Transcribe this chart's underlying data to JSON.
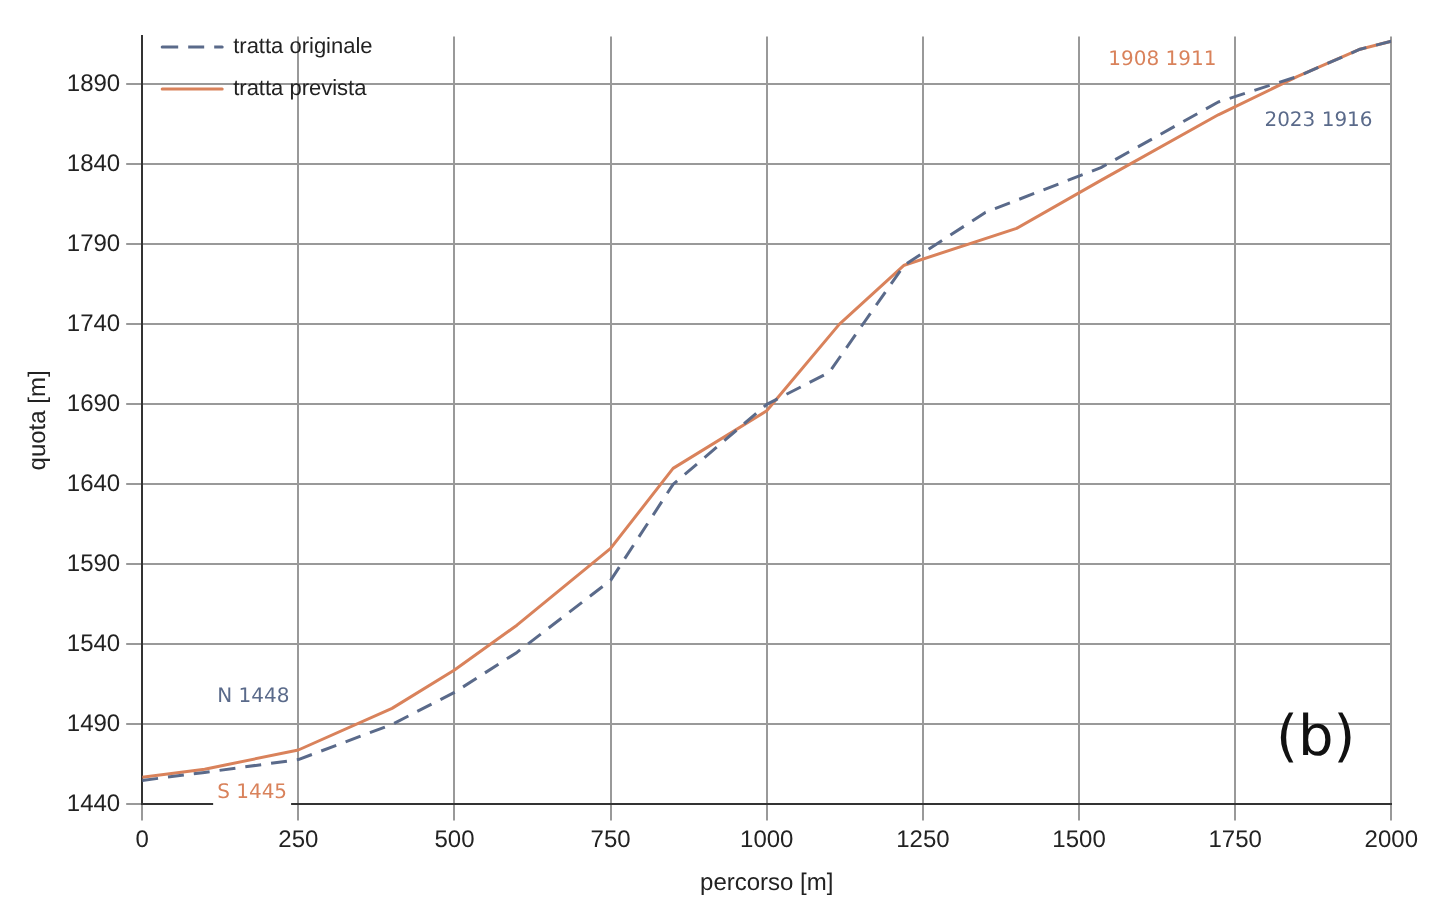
{
  "chart_data": {
    "type": "line",
    "xlabel": "percorso [m]",
    "ylabel": "quota [m]",
    "xlim": [
      0,
      2000
    ],
    "ylim": [
      1440,
      1920
    ],
    "xticks": [
      0,
      250,
      500,
      750,
      1000,
      1250,
      1500,
      1750,
      2000
    ],
    "yticks": [
      1440,
      1490,
      1540,
      1590,
      1640,
      1690,
      1740,
      1790,
      1840,
      1890
    ],
    "grid": true,
    "legend": "top left",
    "marker": "none",
    "series": [
      {
        "name": "tratta originale",
        "color": "#5a6a8a",
        "line_style": "dashed",
        "x": [
          0,
          100,
          250,
          400,
          500,
          600,
          750,
          850,
          1000,
          1100,
          1220,
          1350,
          1535,
          1723,
          1850,
          1950,
          2000
        ],
        "values": [
          1455,
          1460,
          1468,
          1490,
          1510,
          1535,
          1580,
          1640,
          1690,
          1710,
          1777,
          1810,
          1838,
          1879,
          1895,
          1912,
          1917
        ]
      },
      {
        "name": "tratta prevista",
        "color": "#d9825b",
        "line_style": "solid",
        "x": [
          0,
          100,
          250,
          400,
          500,
          600,
          750,
          850,
          1000,
          1116,
          1220,
          1400,
          1535,
          1723,
          1850,
          1950,
          2000
        ],
        "values": [
          1457,
          1462,
          1474,
          1500,
          1524,
          1552,
          1600,
          1650,
          1686,
          1740,
          1777,
          1800,
          1830,
          1871,
          1895,
          1912,
          1917
        ]
      }
    ],
    "annotations": [
      "N 1448",
      "S 1445",
      "1908 1911",
      "2023 1916",
      "(b)"
    ]
  }
}
